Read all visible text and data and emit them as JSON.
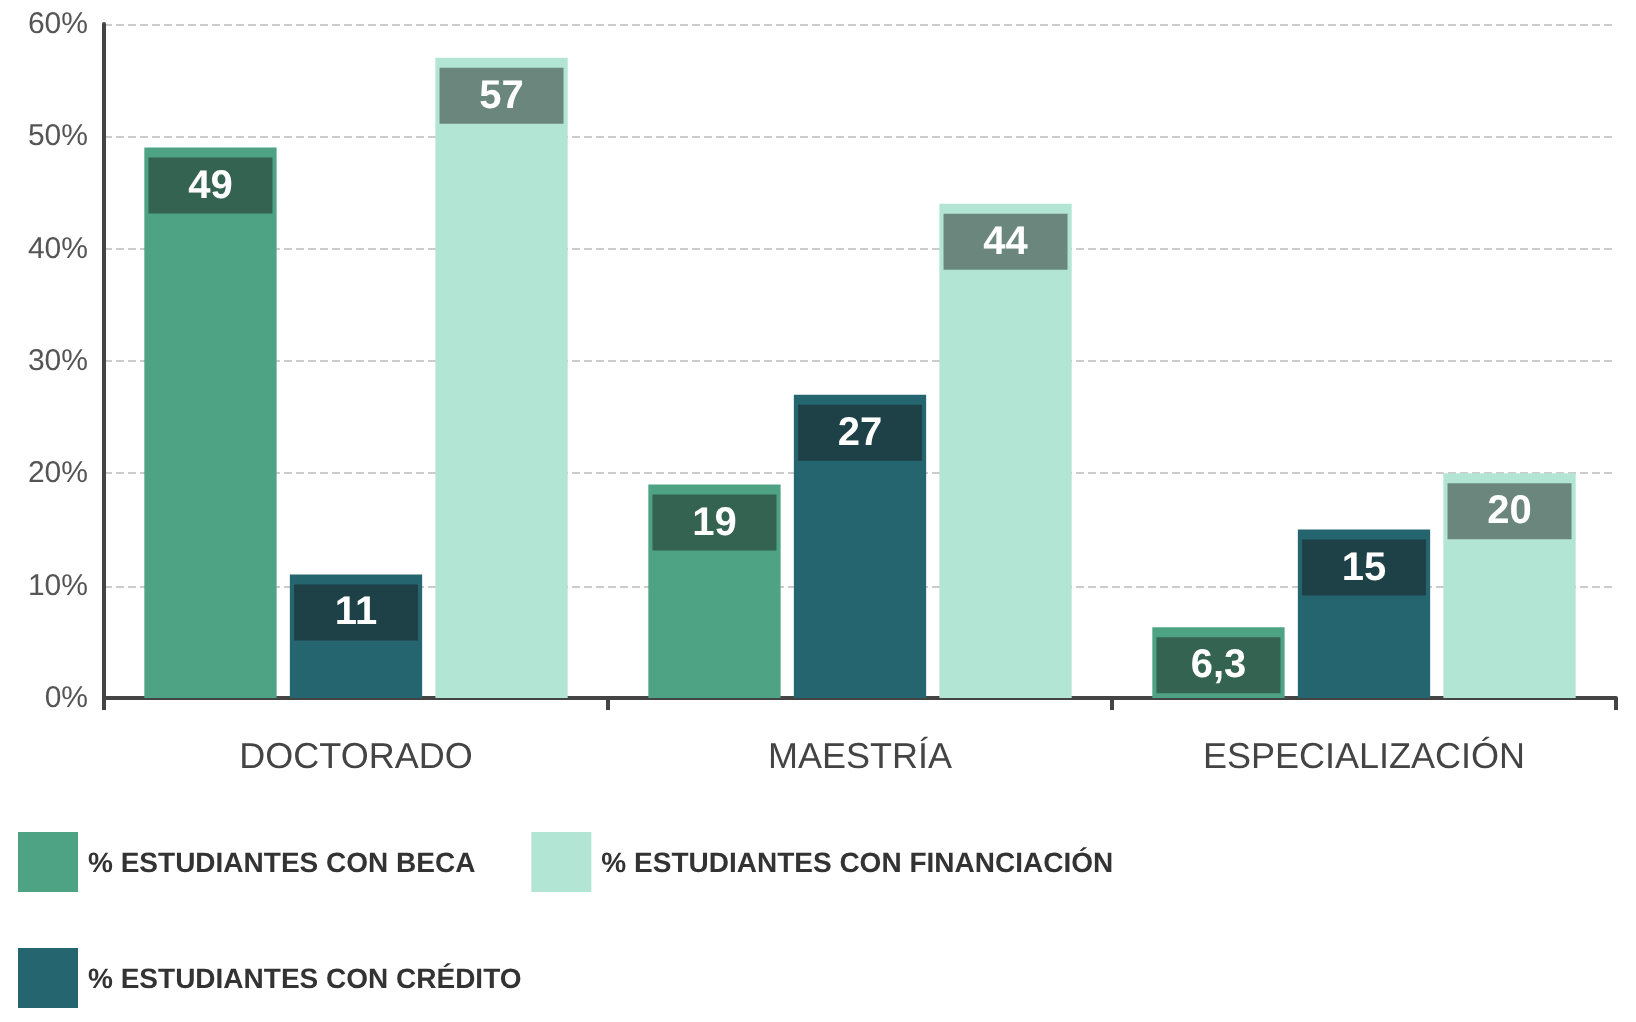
{
  "chart_data": {
    "type": "bar",
    "categories": [
      "DOCTORADO",
      "MAESTRÍA",
      "ESPECIALIZACIÓN"
    ],
    "series": [
      {
        "name": "% ESTUDIANTES CON BECA",
        "color": "#4fa385",
        "values": [
          49,
          19,
          6.3
        ],
        "value_labels": [
          "49",
          "19",
          "6,3"
        ]
      },
      {
        "name": "% ESTUDIANTES CON CRÉDITO",
        "color": "#256570",
        "values": [
          11,
          27,
          15
        ]
      },
      {
        "name": "% ESTUDIANTES CON FINANCIACIÓN",
        "color": "#b2e5d3",
        "values": [
          57,
          44,
          20
        ]
      }
    ],
    "ylim": [
      0,
      60
    ],
    "yticks": [
      {
        "value": 0,
        "label": "0%"
      },
      {
        "value": 10,
        "label": "10%"
      },
      {
        "value": 20,
        "label": "20%"
      },
      {
        "value": 30,
        "label": "30%"
      },
      {
        "value": 40,
        "label": "40%"
      },
      {
        "value": 50,
        "label": "50%"
      },
      {
        "value": 60,
        "label": "60%"
      }
    ],
    "grid": "y",
    "legend": "bottom left",
    "data_labels": true
  }
}
